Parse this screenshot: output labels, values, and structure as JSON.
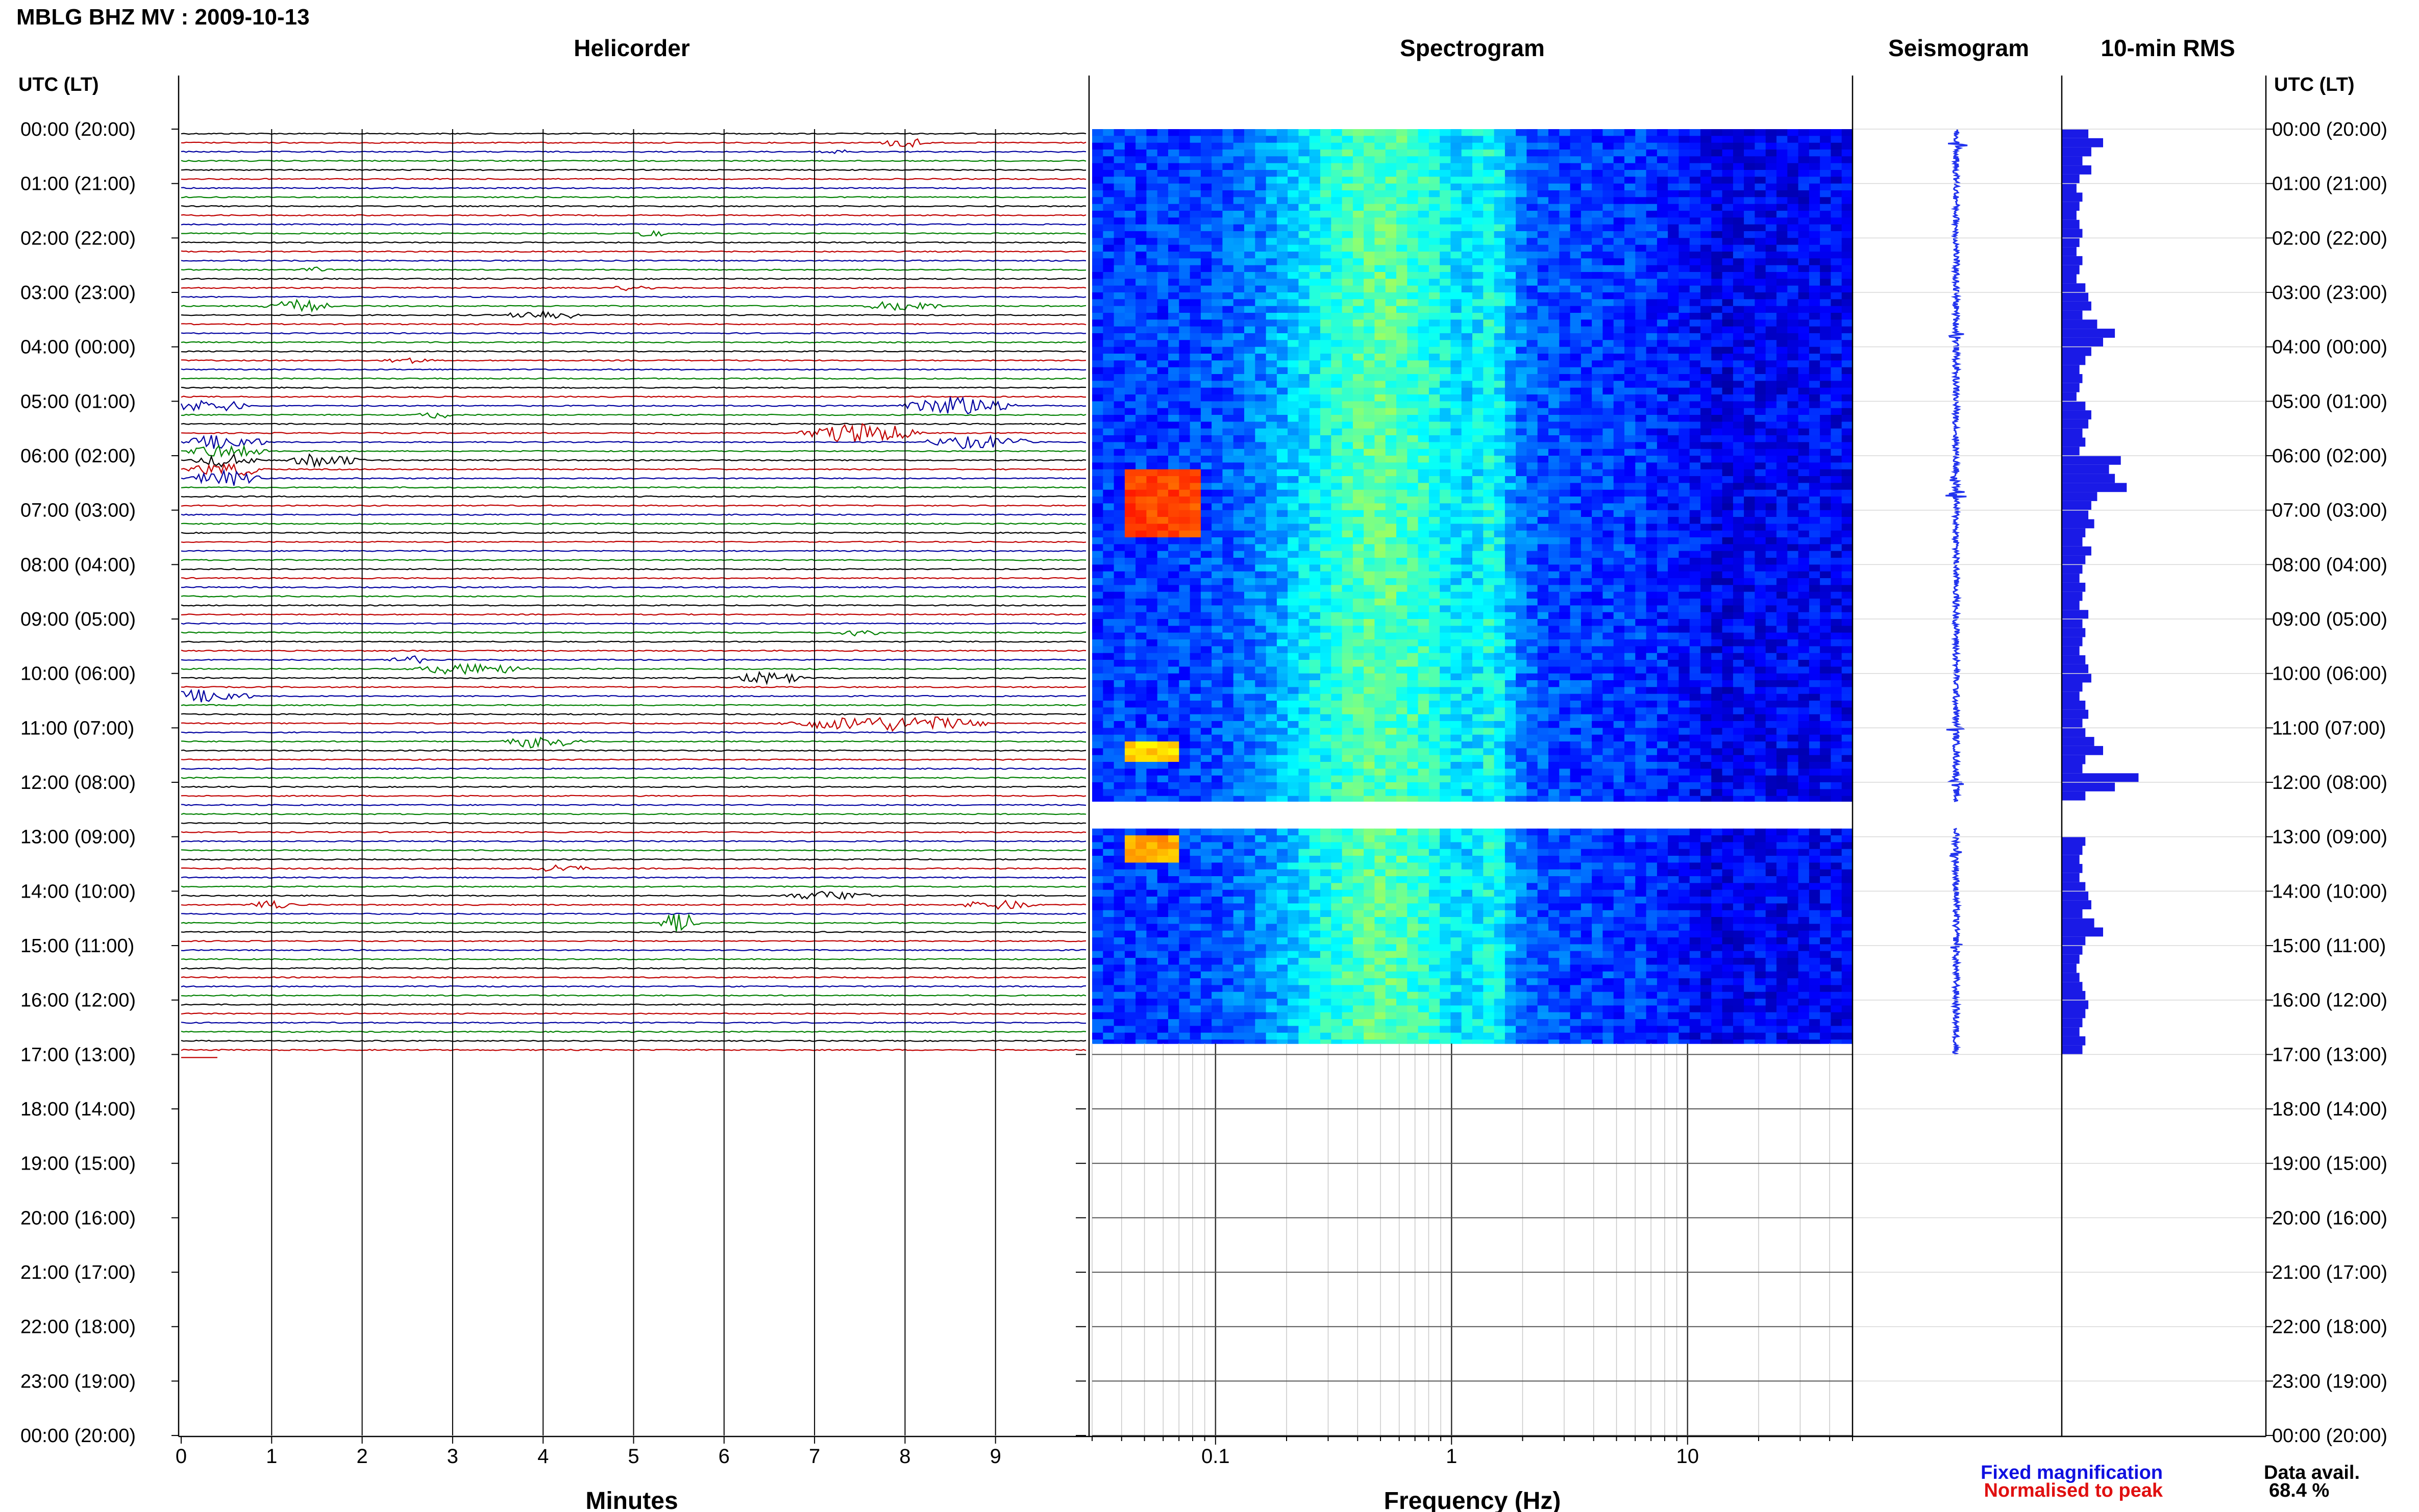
{
  "title": "MBLG BHZ MV : 2009-10-13",
  "panels": {
    "helicorder": "Helicorder",
    "spectrogram": "Spectrogram",
    "seismogram": "Seismogram",
    "rms": "10-min RMS"
  },
  "time_axis_label": "UTC (LT)",
  "footer": {
    "fixed": "Fixed magnification",
    "normalised": "Normalised to peak",
    "avail_label": "Data avail.",
    "avail_value": "68.4 %"
  },
  "colors": {
    "fixed": "#1010e0",
    "normalised": "#e01010",
    "rms_bar": "#1a1ae6",
    "seismo": "#2233ee",
    "trace_cycle": [
      "#000000",
      "#c00000",
      "#0000a0",
      "#008000"
    ]
  },
  "chart_data": {
    "type": "helicorder-spectrogram",
    "time_labels": [
      "00:00 (20:00)",
      "01:00 (21:00)",
      "02:00 (22:00)",
      "03:00 (23:00)",
      "04:00 (00:00)",
      "05:00 (01:00)",
      "06:00 (02:00)",
      "07:00 (03:00)",
      "08:00 (04:00)",
      "09:00 (05:00)",
      "10:00 (06:00)",
      "11:00 (07:00)",
      "12:00 (08:00)",
      "13:00 (09:00)",
      "14:00 (10:00)",
      "15:00 (11:00)",
      "16:00 (12:00)",
      "17:00 (13:00)",
      "18:00 (14:00)",
      "19:00 (15:00)",
      "20:00 (16:00)",
      "21:00 (17:00)",
      "22:00 (18:00)",
      "23:00 (19:00)",
      "00:00 (20:00)"
    ],
    "helicorder": {
      "xlabel": "Minutes",
      "x_ticks": [
        0,
        1,
        2,
        3,
        4,
        5,
        6,
        7,
        8,
        9
      ],
      "xlim": [
        0,
        10
      ],
      "rows_per_hour": 6,
      "data_end_hours": 17.0,
      "events": [
        {
          "row": 1,
          "minute": 8.0,
          "width": 0.6,
          "amp": 0.45
        },
        {
          "row": 2,
          "minute": 7.2,
          "width": 0.4,
          "amp": 0.25
        },
        {
          "row": 11,
          "minute": 5.2,
          "width": 0.4,
          "amp": 0.35
        },
        {
          "row": 15,
          "minute": 1.5,
          "width": 0.4,
          "amp": 0.25
        },
        {
          "row": 17,
          "minute": 5.0,
          "width": 0.5,
          "amp": 0.3
        },
        {
          "row": 19,
          "minute": 1.3,
          "width": 0.9,
          "amp": 0.55
        },
        {
          "row": 19,
          "minute": 8.0,
          "width": 1.0,
          "amp": 0.5
        },
        {
          "row": 20,
          "minute": 4.0,
          "width": 1.0,
          "amp": 0.45
        },
        {
          "row": 25,
          "minute": 2.5,
          "width": 0.6,
          "amp": 0.3
        },
        {
          "row": 30,
          "minute": 0.3,
          "width": 1.0,
          "amp": 0.6
        },
        {
          "row": 30,
          "minute": 8.6,
          "width": 1.4,
          "amp": 0.9
        },
        {
          "row": 31,
          "minute": 2.8,
          "width": 0.5,
          "amp": 0.3
        },
        {
          "row": 33,
          "minute": 7.5,
          "width": 1.5,
          "amp": 0.9
        },
        {
          "row": 34,
          "minute": 0.5,
          "width": 1.0,
          "amp": 0.7
        },
        {
          "row": 34,
          "minute": 8.8,
          "width": 1.3,
          "amp": 0.6
        },
        {
          "row": 35,
          "minute": 0.5,
          "width": 1.0,
          "amp": 0.6
        },
        {
          "row": 36,
          "minute": 0.5,
          "width": 0.8,
          "amp": 0.6
        },
        {
          "row": 36,
          "minute": 1.6,
          "width": 0.9,
          "amp": 0.6
        },
        {
          "row": 37,
          "minute": 0.5,
          "width": 1.0,
          "amp": 0.6
        },
        {
          "row": 38,
          "minute": 0.5,
          "width": 0.9,
          "amp": 0.7
        },
        {
          "row": 55,
          "minute": 7.5,
          "width": 0.6,
          "amp": 0.4
        },
        {
          "row": 58,
          "minute": 2.5,
          "width": 0.5,
          "amp": 0.4
        },
        {
          "row": 59,
          "minute": 3.2,
          "width": 1.5,
          "amp": 0.5
        },
        {
          "row": 60,
          "minute": 6.5,
          "width": 0.8,
          "amp": 0.6
        },
        {
          "row": 62,
          "minute": 0.3,
          "width": 1.1,
          "amp": 0.6
        },
        {
          "row": 65,
          "minute": 7.8,
          "width": 2.6,
          "amp": 0.7
        },
        {
          "row": 67,
          "minute": 4.0,
          "width": 1.0,
          "amp": 0.6
        },
        {
          "row": 81,
          "minute": 4.2,
          "width": 0.8,
          "amp": 0.35
        },
        {
          "row": 84,
          "minute": 7.2,
          "width": 1.2,
          "amp": 0.4
        },
        {
          "row": 85,
          "minute": 1.0,
          "width": 0.6,
          "amp": 0.35
        },
        {
          "row": 85,
          "minute": 9.0,
          "width": 1.0,
          "amp": 0.45
        },
        {
          "row": 87,
          "minute": 5.5,
          "width": 0.5,
          "amp": 0.9
        }
      ]
    },
    "spectrogram": {
      "xlabel": "Frequency (Hz)",
      "x_scale": "log",
      "xlim": [
        0.03,
        50
      ],
      "x_tick_labels": [
        "0.1",
        "1",
        "10"
      ],
      "x_ticks": [
        0.1,
        1,
        10
      ],
      "data_segments_hours": [
        [
          0,
          12.35
        ],
        [
          12.85,
          16.8
        ]
      ],
      "colormap": "jet",
      "hotspots": [
        {
          "hour_start": 6.2,
          "hour_end": 7.4,
          "freq_low": 0.04,
          "freq_high": 0.09,
          "level": 0.85
        },
        {
          "hour_start": 11.2,
          "hour_end": 11.6,
          "freq_low": 0.04,
          "freq_high": 0.07,
          "level": 0.7
        },
        {
          "hour_start": 12.9,
          "hour_end": 13.4,
          "freq_low": 0.04,
          "freq_high": 0.07,
          "level": 0.75
        }
      ]
    },
    "seismogram": {
      "data_segments_hours": [
        [
          0,
          12.35
        ],
        [
          12.85,
          17.0
        ]
      ],
      "spikes_hours": [
        0.3,
        3.8,
        6.4,
        6.7,
        11.0,
        12.0,
        13.3,
        15.0
      ]
    },
    "rms": {
      "bin_minutes": 10,
      "values": [
        0.45,
        0.7,
        0.5,
        0.35,
        0.5,
        0.3,
        0.25,
        0.35,
        0.3,
        0.25,
        0.3,
        0.35,
        0.3,
        0.25,
        0.35,
        0.3,
        0.25,
        0.4,
        0.45,
        0.5,
        0.35,
        0.6,
        0.9,
        0.7,
        0.5,
        0.4,
        0.3,
        0.35,
        0.3,
        0.25,
        0.4,
        0.5,
        0.45,
        0.35,
        0.4,
        0.3,
        1.0,
        0.8,
        0.9,
        1.1,
        0.6,
        0.5,
        0.45,
        0.55,
        0.4,
        0.35,
        0.5,
        0.4,
        0.35,
        0.3,
        0.4,
        0.35,
        0.3,
        0.45,
        0.35,
        0.4,
        0.35,
        0.3,
        0.4,
        0.45,
        0.5,
        0.35,
        0.3,
        0.4,
        0.45,
        0.35,
        0.4,
        0.55,
        0.7,
        0.4,
        0.35,
        1.3,
        0.9,
        0.4,
        null,
        null,
        null,
        null,
        0.4,
        0.35,
        0.3,
        0.35,
        0.3,
        0.4,
        0.45,
        0.5,
        0.35,
        0.55,
        0.7,
        0.4,
        0.35,
        0.3,
        0.25,
        0.3,
        0.35,
        0.4,
        0.45,
        0.4,
        0.35,
        0.3,
        0.4,
        0.35
      ]
    }
  }
}
